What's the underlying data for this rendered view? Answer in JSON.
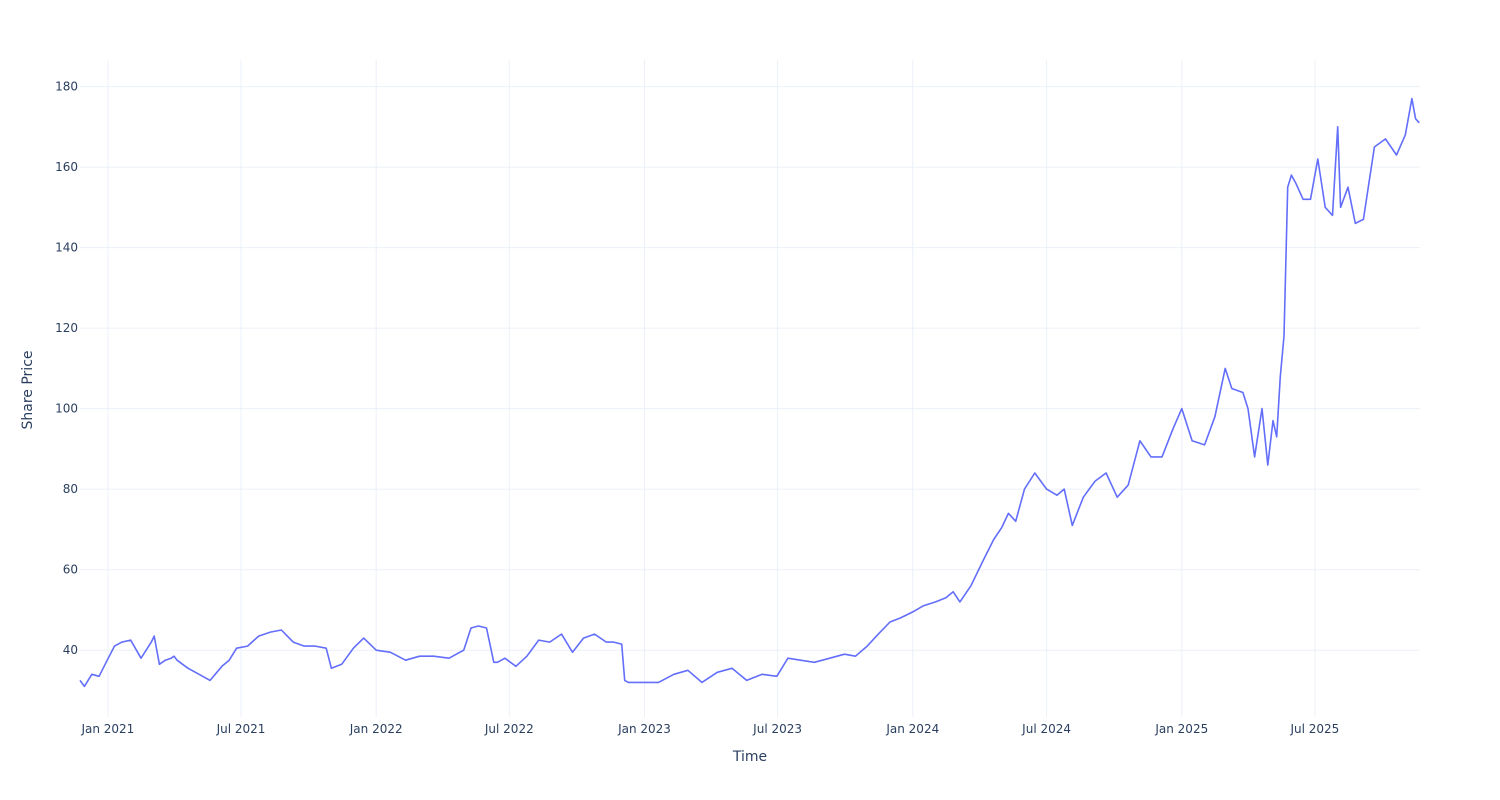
{
  "chart_data": {
    "type": "line",
    "title": "",
    "xlabel": "Time",
    "ylabel": "Share Price",
    "xlim": [
      "2020-11-24",
      "2025-11-21"
    ],
    "ylim": [
      23.4,
      186.6
    ],
    "x_ticks": [
      "2021-01-01",
      "2021-07-01",
      "2022-01-01",
      "2022-07-01",
      "2023-01-01",
      "2023-07-01",
      "2024-01-01",
      "2024-07-01",
      "2025-01-01",
      "2025-07-01"
    ],
    "x_tick_labels": [
      "Jan 2021",
      "Jul 2021",
      "Jan 2022",
      "Jul 2022",
      "Jan 2023",
      "Jul 2023",
      "Jan 2024",
      "Jul 2024",
      "Jan 2025",
      "Jul 2025"
    ],
    "y_ticks": [
      40,
      60,
      80,
      100,
      120,
      140,
      160,
      180
    ],
    "y_tick_labels": [
      "40",
      "60",
      "80",
      "100",
      "120",
      "140",
      "160",
      "180"
    ],
    "grid": true,
    "legend": "none",
    "colors": {
      "line": "#636efa",
      "grid": "#ebf0f8",
      "text": "#2a3f5f",
      "background": "#ffffff"
    },
    "series": [
      {
        "x": [
          "2020-11-24",
          "2020-11-30",
          "2020-12-10",
          "2020-12-20",
          "2020-12-31",
          "2021-01-10",
          "2021-01-20",
          "2021-02-01",
          "2021-02-15",
          "2021-03-01",
          "2021-03-05",
          "2021-03-12",
          "2021-03-20",
          "2021-03-28",
          "2021-04-01",
          "2021-04-05",
          "2021-04-20",
          "2021-05-05",
          "2021-05-20",
          "2021-06-05",
          "2021-06-15",
          "2021-06-25",
          "2021-07-10",
          "2021-07-25",
          "2021-08-10",
          "2021-08-25",
          "2021-09-10",
          "2021-09-25",
          "2021-10-10",
          "2021-10-25",
          "2021-11-01",
          "2021-11-15",
          "2021-12-01",
          "2021-12-15",
          "2022-01-01",
          "2022-01-20",
          "2022-02-10",
          "2022-03-01",
          "2022-03-20",
          "2022-04-10",
          "2022-04-30",
          "2022-05-10",
          "2022-05-20",
          "2022-05-31",
          "2022-06-10",
          "2022-06-15",
          "2022-06-25",
          "2022-07-10",
          "2022-07-25",
          "2022-08-10",
          "2022-08-25",
          "2022-09-10",
          "2022-09-25",
          "2022-10-10",
          "2022-10-25",
          "2022-11-10",
          "2022-11-20",
          "2022-12-01",
          "2022-12-05",
          "2022-12-10",
          "2022-12-20",
          "2023-01-01",
          "2023-01-20",
          "2023-02-10",
          "2023-03-01",
          "2023-03-20",
          "2023-04-10",
          "2023-04-30",
          "2023-05-20",
          "2023-06-10",
          "2023-06-30",
          "2023-07-15",
          "2023-08-01",
          "2023-08-20",
          "2023-09-10",
          "2023-09-30",
          "2023-10-15",
          "2023-10-31",
          "2023-11-15",
          "2023-12-01",
          "2023-12-15",
          "2024-01-01",
          "2024-01-15",
          "2024-02-01",
          "2024-02-15",
          "2024-02-25",
          "2024-03-05",
          "2024-03-20",
          "2024-04-05",
          "2024-04-20",
          "2024-05-01",
          "2024-05-10",
          "2024-05-20",
          "2024-06-01",
          "2024-06-15",
          "2024-07-01",
          "2024-07-15",
          "2024-07-25",
          "2024-08-05",
          "2024-08-20",
          "2024-09-05",
          "2024-09-20",
          "2024-10-05",
          "2024-10-20",
          "2024-11-05",
          "2024-11-20",
          "2024-12-05",
          "2024-12-20",
          "2025-01-01",
          "2025-01-15",
          "2025-02-01",
          "2025-02-15",
          "2025-03-01",
          "2025-03-10",
          "2025-03-25",
          "2025-04-01",
          "2025-04-10",
          "2025-04-20",
          "2025-04-28",
          "2025-05-05",
          "2025-05-10",
          "2025-05-15",
          "2025-05-20",
          "2025-05-25",
          "2025-05-30",
          "2025-06-05",
          "2025-06-15",
          "2025-06-25",
          "2025-07-05",
          "2025-07-15",
          "2025-07-25",
          "2025-08-01",
          "2025-08-05",
          "2025-08-15",
          "2025-08-25",
          "2025-09-05",
          "2025-09-20",
          "2025-10-05",
          "2025-10-20",
          "2025-11-01",
          "2025-11-10",
          "2025-11-15",
          "2025-11-20"
        ],
        "y": [
          32.5,
          31.0,
          34.0,
          33.5,
          37.5,
          41.0,
          42.0,
          42.5,
          38.0,
          42.0,
          43.5,
          36.5,
          37.5,
          38.0,
          38.5,
          37.5,
          35.5,
          34.0,
          32.5,
          36.0,
          37.5,
          40.5,
          41.0,
          43.5,
          44.5,
          45.0,
          42.0,
          41.0,
          41.0,
          40.5,
          35.5,
          36.5,
          40.5,
          43.0,
          40.0,
          39.5,
          37.5,
          38.5,
          38.5,
          38.0,
          40.0,
          45.5,
          46.0,
          45.5,
          37.0,
          37.0,
          38.0,
          36.0,
          38.5,
          42.5,
          42.0,
          44.0,
          39.5,
          43.0,
          44.0,
          42.0,
          42.0,
          41.5,
          32.5,
          32.0,
          32.0,
          32.0,
          32.0,
          34.0,
          35.0,
          32.0,
          34.5,
          35.5,
          32.5,
          34.0,
          33.5,
          38.0,
          37.5,
          37.0,
          38.0,
          39.0,
          38.5,
          41.0,
          44.0,
          47.0,
          48.0,
          49.5,
          51.0,
          52.0,
          53.0,
          54.5,
          52.0,
          56.0,
          62.0,
          67.5,
          70.5,
          74.0,
          72.0,
          80.0,
          84.0,
          80.0,
          78.5,
          80.0,
          71.0,
          78.0,
          82.0,
          84.0,
          78.0,
          81.0,
          92.0,
          88.0,
          88.0,
          95.0,
          100.0,
          92.0,
          91.0,
          98.0,
          110.0,
          105.0,
          104.0,
          100.0,
          88.0,
          100.0,
          86.0,
          97.0,
          93.0,
          108.0,
          118.0,
          155.0,
          158.0,
          156.0,
          152.0,
          152.0,
          162.0,
          150.0,
          148.0,
          170.0,
          150.0,
          155.0,
          146.0,
          147.0,
          165.0,
          167.0,
          163.0,
          168.0,
          177.0,
          172.0,
          171.0
        ]
      }
    ]
  }
}
